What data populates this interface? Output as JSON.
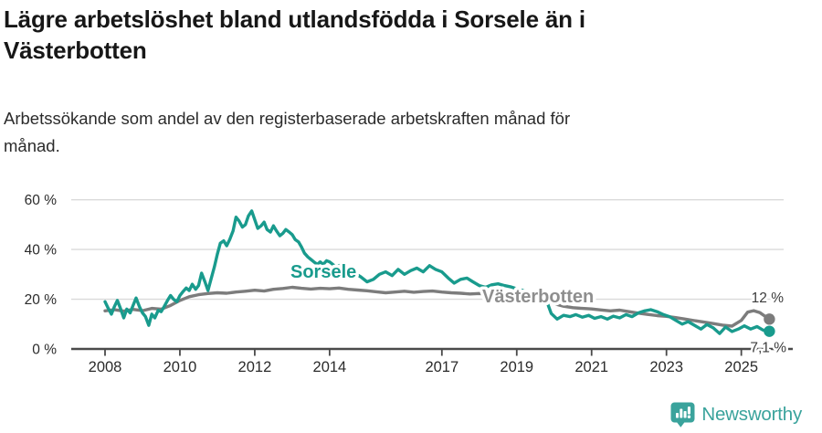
{
  "header": {
    "title_line1": "Lägre arbetslöshet bland utlandsfödda i Sorsele än i",
    "title_line2": "Västerbotten",
    "subtitle_line1": "Arbetssökande som andel av den registerbaserade arbetskraften månad för",
    "subtitle_line2": "månad."
  },
  "footer": {
    "brand": "Newsworthy",
    "icon": "newsworthy-speech-bubble-bar-chart-icon",
    "brand_color": "#3aa39c"
  },
  "chart_data": {
    "type": "line",
    "title": "Lägre arbetslöshet bland utlandsfödda i Sorsele än i Västerbotten",
    "subtitle": "Arbetssökande som andel av den registerbaserade arbetskraften månad för månad.",
    "xlabel": "",
    "ylabel": "",
    "grid": "horizontal-only",
    "xlim": [
      2007.1,
      2026.3
    ],
    "ylim": [
      0,
      62
    ],
    "x_ticks": [
      {
        "year": 2008,
        "label": "2008"
      },
      {
        "year": 2010,
        "label": "2010"
      },
      {
        "year": 2012,
        "label": "2012"
      },
      {
        "year": 2014,
        "label": "2014"
      },
      {
        "year": 2017,
        "label": "2017"
      },
      {
        "year": 2019,
        "label": "2019"
      },
      {
        "year": 2021,
        "label": "2021"
      },
      {
        "year": 2023,
        "label": "2023"
      },
      {
        "year": 2025,
        "label": "2025"
      }
    ],
    "y_ticks": [
      {
        "value": 0,
        "label": "0 %"
      },
      {
        "value": 20,
        "label": "20 %"
      },
      {
        "value": 40,
        "label": "40 %"
      },
      {
        "value": 60,
        "label": "60 %"
      }
    ],
    "series": [
      {
        "name": "Västerbotten",
        "color": "#7c7c7c",
        "label_color": "#8e8e8e",
        "end_label": "12 %",
        "end_value": 12,
        "points": [
          [
            2008.0,
            15.3
          ],
          [
            2008.25,
            15.8
          ],
          [
            2008.5,
            15.2
          ],
          [
            2008.75,
            15.9
          ],
          [
            2009.0,
            15.4
          ],
          [
            2009.25,
            16.3
          ],
          [
            2009.5,
            16.0
          ],
          [
            2009.75,
            17.5
          ],
          [
            2010.0,
            19.5
          ],
          [
            2010.25,
            21.0
          ],
          [
            2010.5,
            21.8
          ],
          [
            2010.75,
            22.3
          ],
          [
            2011.0,
            22.6
          ],
          [
            2011.25,
            22.4
          ],
          [
            2011.5,
            22.9
          ],
          [
            2011.75,
            23.2
          ],
          [
            2012.0,
            23.6
          ],
          [
            2012.25,
            23.3
          ],
          [
            2012.5,
            24.0
          ],
          [
            2012.75,
            24.3
          ],
          [
            2013.0,
            24.8
          ],
          [
            2013.25,
            24.4
          ],
          [
            2013.5,
            24.1
          ],
          [
            2013.75,
            24.4
          ],
          [
            2014.0,
            24.2
          ],
          [
            2014.25,
            24.5
          ],
          [
            2014.5,
            24.0
          ],
          [
            2014.75,
            23.7
          ],
          [
            2015.0,
            23.4
          ],
          [
            2015.25,
            23.0
          ],
          [
            2015.5,
            22.6
          ],
          [
            2015.75,
            22.9
          ],
          [
            2016.0,
            23.2
          ],
          [
            2016.25,
            22.8
          ],
          [
            2016.5,
            23.1
          ],
          [
            2016.75,
            23.3
          ],
          [
            2017.0,
            22.9
          ],
          [
            2017.25,
            22.6
          ],
          [
            2017.5,
            22.4
          ],
          [
            2017.75,
            22.1
          ],
          [
            2018.0,
            22.3
          ],
          [
            2018.25,
            21.9
          ],
          [
            2018.5,
            21.7
          ],
          [
            2018.75,
            21.9
          ],
          [
            2019.0,
            21.5
          ],
          [
            2019.25,
            21.0
          ],
          [
            2019.5,
            20.3
          ],
          [
            2019.75,
            19.3
          ],
          [
            2020.0,
            18.2
          ],
          [
            2020.25,
            17.2
          ],
          [
            2020.5,
            16.6
          ],
          [
            2020.75,
            16.3
          ],
          [
            2021.0,
            16.1
          ],
          [
            2021.25,
            15.7
          ],
          [
            2021.5,
            15.3
          ],
          [
            2021.75,
            15.6
          ],
          [
            2022.0,
            15.0
          ],
          [
            2022.25,
            14.4
          ],
          [
            2022.5,
            13.9
          ],
          [
            2022.75,
            13.4
          ],
          [
            2023.0,
            13.1
          ],
          [
            2023.25,
            12.6
          ],
          [
            2023.5,
            12.0
          ],
          [
            2023.75,
            11.4
          ],
          [
            2024.0,
            10.8
          ],
          [
            2024.25,
            10.2
          ],
          [
            2024.5,
            9.6
          ],
          [
            2024.75,
            9.2
          ],
          [
            2025.0,
            11.5
          ],
          [
            2025.17,
            14.8
          ],
          [
            2025.33,
            15.4
          ],
          [
            2025.5,
            14.6
          ],
          [
            2025.63,
            13.2
          ],
          [
            2025.75,
            12.0
          ]
        ]
      },
      {
        "name": "Sorsele",
        "color": "#199b8d",
        "label_color": "#199b8d",
        "end_label": "7,1 %",
        "end_value": 7.1,
        "points": [
          [
            2008.0,
            19.0
          ],
          [
            2008.08,
            16.5
          ],
          [
            2008.17,
            14.0
          ],
          [
            2008.25,
            17.0
          ],
          [
            2008.33,
            19.5
          ],
          [
            2008.42,
            16.0
          ],
          [
            2008.5,
            12.5
          ],
          [
            2008.58,
            16.0
          ],
          [
            2008.67,
            14.5
          ],
          [
            2008.75,
            17.5
          ],
          [
            2008.83,
            20.5
          ],
          [
            2008.92,
            17.0
          ],
          [
            2009.0,
            14.5
          ],
          [
            2009.08,
            13.0
          ],
          [
            2009.17,
            9.5
          ],
          [
            2009.25,
            14.0
          ],
          [
            2009.33,
            12.5
          ],
          [
            2009.42,
            15.5
          ],
          [
            2009.5,
            15.0
          ],
          [
            2009.58,
            17.0
          ],
          [
            2009.67,
            19.5
          ],
          [
            2009.75,
            21.5
          ],
          [
            2009.83,
            20.0
          ],
          [
            2009.92,
            19.0
          ],
          [
            2010.0,
            21.5
          ],
          [
            2010.08,
            23.0
          ],
          [
            2010.17,
            24.5
          ],
          [
            2010.25,
            23.5
          ],
          [
            2010.33,
            26.0
          ],
          [
            2010.42,
            24.0
          ],
          [
            2010.5,
            25.5
          ],
          [
            2010.58,
            30.5
          ],
          [
            2010.67,
            27.0
          ],
          [
            2010.75,
            23.5
          ],
          [
            2010.83,
            28.0
          ],
          [
            2010.92,
            33.0
          ],
          [
            2011.0,
            38.0
          ],
          [
            2011.08,
            42.5
          ],
          [
            2011.17,
            43.5
          ],
          [
            2011.25,
            41.5
          ],
          [
            2011.33,
            44.0
          ],
          [
            2011.42,
            47.5
          ],
          [
            2011.5,
            53.0
          ],
          [
            2011.58,
            51.5
          ],
          [
            2011.67,
            49.0
          ],
          [
            2011.75,
            50.0
          ],
          [
            2011.83,
            53.5
          ],
          [
            2011.92,
            55.5
          ],
          [
            2012.0,
            52.0
          ],
          [
            2012.08,
            48.5
          ],
          [
            2012.17,
            49.5
          ],
          [
            2012.25,
            51.0
          ],
          [
            2012.33,
            48.0
          ],
          [
            2012.42,
            47.0
          ],
          [
            2012.5,
            49.5
          ],
          [
            2012.58,
            47.5
          ],
          [
            2012.67,
            45.5
          ],
          [
            2012.75,
            46.5
          ],
          [
            2012.83,
            48.0
          ],
          [
            2012.92,
            47.0
          ],
          [
            2013.0,
            46.0
          ],
          [
            2013.08,
            44.0
          ],
          [
            2013.17,
            43.0
          ],
          [
            2013.25,
            41.0
          ],
          [
            2013.33,
            38.5
          ],
          [
            2013.42,
            37.0
          ],
          [
            2013.5,
            36.0
          ],
          [
            2013.58,
            35.0
          ],
          [
            2013.67,
            34.0
          ],
          [
            2013.75,
            35.0
          ],
          [
            2013.83,
            34.0
          ],
          [
            2013.92,
            35.5
          ],
          [
            2014.0,
            35.0
          ],
          [
            2014.17,
            33.0
          ],
          [
            2014.33,
            34.0
          ],
          [
            2014.5,
            32.0
          ],
          [
            2014.67,
            30.5
          ],
          [
            2014.83,
            29.0
          ],
          [
            2015.0,
            27.0
          ],
          [
            2015.17,
            28.0
          ],
          [
            2015.33,
            30.0
          ],
          [
            2015.5,
            31.0
          ],
          [
            2015.67,
            29.5
          ],
          [
            2015.83,
            32.0
          ],
          [
            2016.0,
            30.0
          ],
          [
            2016.17,
            31.5
          ],
          [
            2016.33,
            32.5
          ],
          [
            2016.5,
            31.0
          ],
          [
            2016.67,
            33.5
          ],
          [
            2016.83,
            32.0
          ],
          [
            2017.0,
            31.0
          ],
          [
            2017.17,
            28.5
          ],
          [
            2017.33,
            26.5
          ],
          [
            2017.5,
            28.0
          ],
          [
            2017.67,
            28.5
          ],
          [
            2017.83,
            27.0
          ],
          [
            2018.0,
            25.5
          ],
          [
            2018.17,
            24.8
          ],
          [
            2018.33,
            25.8
          ],
          [
            2018.5,
            26.2
          ],
          [
            2018.67,
            25.5
          ],
          [
            2018.83,
            25.0
          ],
          [
            2019.0,
            24.2
          ],
          [
            2019.17,
            23.5
          ],
          [
            2019.33,
            23.0
          ],
          [
            2019.5,
            22.5
          ],
          [
            2019.67,
            22.0
          ],
          [
            2019.83,
            18.0
          ],
          [
            2019.92,
            14.3
          ],
          [
            2020.08,
            12.0
          ],
          [
            2020.25,
            13.5
          ],
          [
            2020.42,
            13.0
          ],
          [
            2020.58,
            13.8
          ],
          [
            2020.75,
            12.8
          ],
          [
            2020.92,
            13.5
          ],
          [
            2021.08,
            12.3
          ],
          [
            2021.25,
            13.0
          ],
          [
            2021.42,
            12.0
          ],
          [
            2021.58,
            13.2
          ],
          [
            2021.75,
            12.5
          ],
          [
            2021.92,
            13.8
          ],
          [
            2022.08,
            13.0
          ],
          [
            2022.25,
            14.5
          ],
          [
            2022.42,
            15.3
          ],
          [
            2022.58,
            15.8
          ],
          [
            2022.75,
            15.0
          ],
          [
            2022.92,
            13.8
          ],
          [
            2023.08,
            13.0
          ],
          [
            2023.25,
            11.5
          ],
          [
            2023.42,
            10.0
          ],
          [
            2023.58,
            11.0
          ],
          [
            2023.75,
            9.5
          ],
          [
            2023.92,
            8.0
          ],
          [
            2024.08,
            9.8
          ],
          [
            2024.25,
            8.5
          ],
          [
            2024.42,
            6.2
          ],
          [
            2024.58,
            8.8
          ],
          [
            2024.75,
            7.0
          ],
          [
            2024.92,
            8.0
          ],
          [
            2025.08,
            9.3
          ],
          [
            2025.25,
            8.0
          ],
          [
            2025.42,
            9.0
          ],
          [
            2025.58,
            7.6
          ],
          [
            2025.75,
            7.1
          ]
        ]
      }
    ]
  }
}
